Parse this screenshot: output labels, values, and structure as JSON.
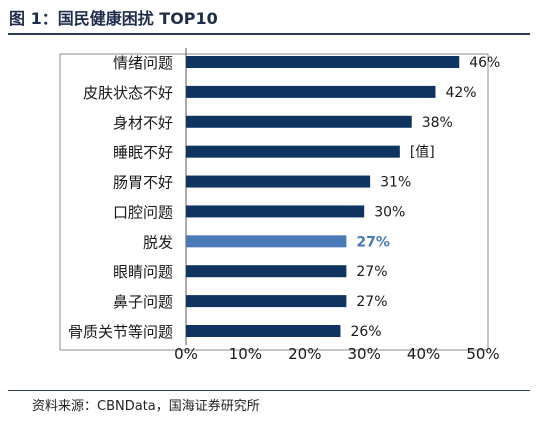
{
  "figure": {
    "title": "图 1：国民健康困扰 TOP10",
    "source": "资料来源：CBNData，国海证券研究所"
  },
  "colors": {
    "bar": "#0f3460",
    "highlight_bar": "#4a7ab8",
    "highlight_label": "#4a7ab8",
    "label": "#1a1a1a",
    "axis": "#595959",
    "border": "#8c8c8c"
  },
  "chart_data": {
    "type": "bar",
    "orientation": "horizontal",
    "title": "",
    "xlabel": "",
    "ylabel": "",
    "xlim": [
      0,
      50
    ],
    "x_ticks": [
      "0%",
      "10%",
      "20%",
      "30%",
      "40%",
      "50%"
    ],
    "categories": [
      "情绪问题",
      "皮肤状态不好",
      "身材不好",
      "睡眠不好",
      "肠胃不好",
      "口腔问题",
      "脱发",
      "眼睛问题",
      "鼻子问题",
      "骨质关节等问题"
    ],
    "values": [
      46,
      42,
      38,
      36,
      31,
      30,
      27,
      27,
      27,
      26
    ],
    "value_labels": [
      "46%",
      "42%",
      "38%",
      "[值]",
      "31%",
      "30%",
      "27%",
      "27%",
      "27%",
      "26%"
    ],
    "highlighted_category": "脱发",
    "grid": false,
    "legend": "none"
  }
}
